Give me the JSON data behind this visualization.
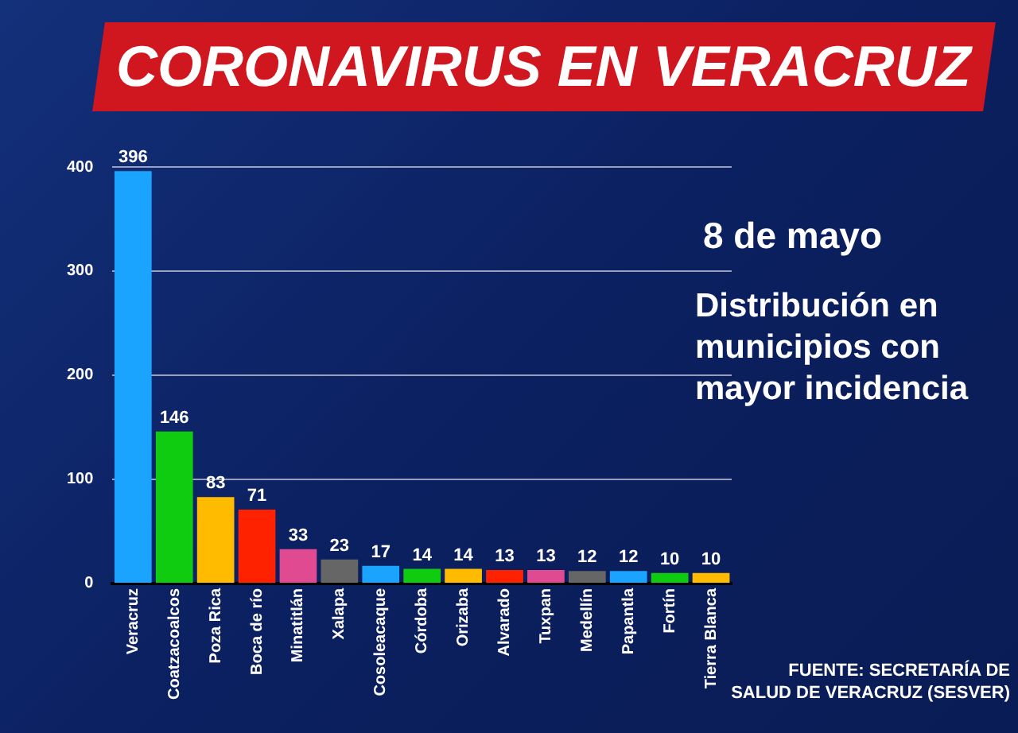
{
  "chart_data": {
    "type": "bar",
    "title": "CORONAVIRUS EN VERACRUZ",
    "subtitle": "Distribución en municipios con mayor incidencia",
    "annotations": [
      "8 de mayo",
      "FUENTE: SECRETARÍA DE SALUD DE VERACRUZ (SESVER)"
    ],
    "categories": [
      "Veracruz",
      "Coatzacoalcos",
      "Poza Rica",
      "Boca de río",
      "Minatitlán",
      "Xalapa",
      "Cosoleacaque",
      "Córdoba",
      "Orizaba",
      "Alvarado",
      "Tuxpan",
      "Medellín",
      "Papantla",
      "Fortín",
      "Tierra Blanca"
    ],
    "values": [
      396,
      146,
      83,
      71,
      33,
      23,
      17,
      14,
      14,
      13,
      13,
      12,
      12,
      10,
      10
    ],
    "colors": [
      "#1aa3ff",
      "#10cc10",
      "#ffbb00",
      "#ff2200",
      "#e04a90",
      "#666666",
      "#1aa3ff",
      "#10cc10",
      "#ffbb00",
      "#ff2200",
      "#e04a90",
      "#666666",
      "#1aa3ff",
      "#10cc10",
      "#ffbb00"
    ],
    "ylim": [
      0,
      400
    ],
    "yticks": [
      0,
      100,
      200,
      300,
      400
    ],
    "grid": "y",
    "data_labels": true,
    "legend": false
  }
}
